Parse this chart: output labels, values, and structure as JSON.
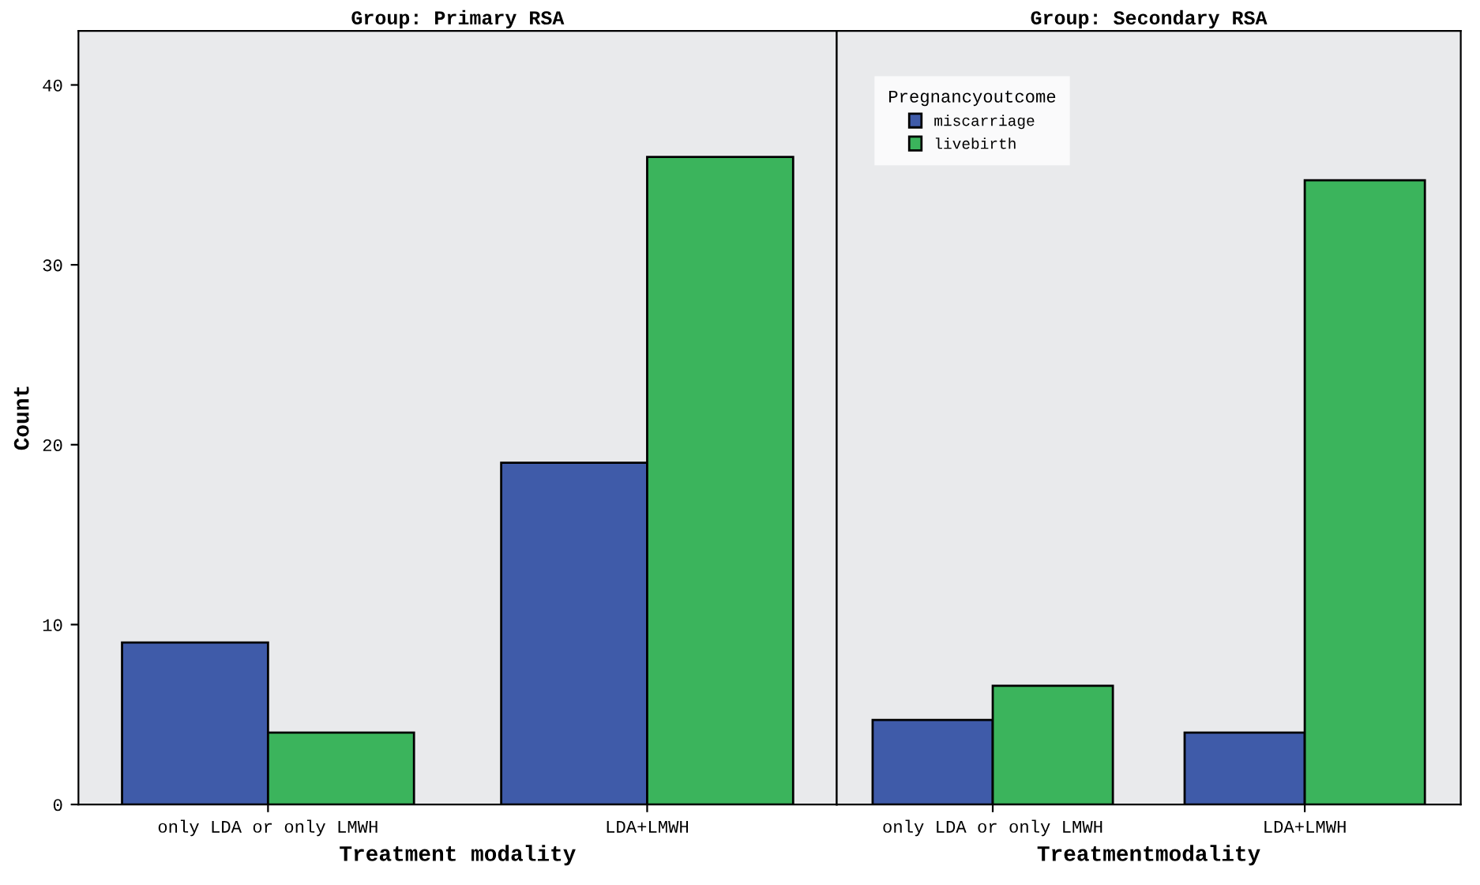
{
  "chart_data": [
    {
      "type": "bar",
      "title": "Group: Primary RSA",
      "xlabel": "Treatment modality",
      "ylabel": "Count",
      "categories": [
        "only LDA or only LMWH",
        "LDA+LMWH"
      ],
      "series": [
        {
          "color": "#3f5ba9",
          "values": [
            9,
            19
          ]
        },
        {
          "color": "#3bb45c",
          "values": [
            4,
            36
          ]
        }
      ],
      "ylim": [
        0,
        43
      ],
      "yticks": [
        0,
        10,
        20,
        30,
        40
      ],
      "grid": false
    },
    {
      "type": "bar",
      "title": "Group: Secondary RSA",
      "xlabel": "Treatmentmodality",
      "categories": [
        "only LDA or only LMWH",
        "LDA+LMWH"
      ],
      "series": [
        {
          "name": "miscarriage",
          "color": "#3f5ba9",
          "values": [
            4.7,
            4.0
          ]
        },
        {
          "name": "livebirth",
          "color": "#3bb45c",
          "values": [
            6.6,
            34.7
          ]
        }
      ],
      "ylim": [
        0,
        43
      ],
      "yticks": [
        0,
        10,
        20,
        30,
        40
      ],
      "tick_labels": "x",
      "grid": false,
      "legend": "top left",
      "legend_title": "Pregnancyoutcome"
    }
  ]
}
